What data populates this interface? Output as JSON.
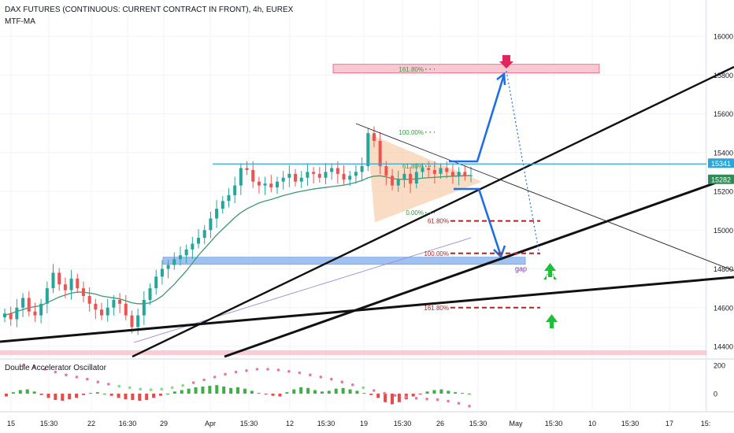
{
  "header": {
    "title": "DAX FUTURES (CONTINUOUS: CURRENT CONTRACT IN FRONT), 4h, EUREX",
    "indicator": "MTF-MA"
  },
  "oscillator": {
    "title": "Double Accelerator Oscillator",
    "ticks": [
      "200",
      "0"
    ]
  },
  "chart_data": {
    "type": "line",
    "ylim": [
      14340,
      16120
    ],
    "price_ticks": [
      16000,
      15800,
      15600,
      15400,
      15200,
      15000,
      14800,
      14600,
      14400
    ],
    "price_tags": [
      {
        "value": 15341,
        "label": "15341",
        "color": "#2ca6d8"
      },
      {
        "value": 15282,
        "label": "15282",
        "color": "#2e8b57"
      }
    ],
    "x_ticks": [
      "15",
      "15:30",
      "22",
      "16:30",
      "29",
      "Apr",
      "15:30",
      "12",
      "15:30",
      "19",
      "15:30",
      "26",
      "15:30",
      "May",
      "15:30",
      "10",
      "15:30",
      "17",
      "15:"
    ],
    "price_close": [
      14570,
      14540,
      14600,
      14650,
      14580,
      14560,
      14620,
      14700,
      14780,
      14720,
      14690,
      14750,
      14700,
      14660,
      14620,
      14590,
      14560,
      14600,
      14640,
      14620,
      14560,
      14500,
      14560,
      14640,
      14700,
      14760,
      14800,
      14820,
      14850,
      14870,
      14900,
      14930,
      14960,
      15000,
      15060,
      15110,
      15150,
      15180,
      15230,
      15320,
      15310,
      15250,
      15230,
      15240,
      15220,
      15250,
      15270,
      15290,
      15250,
      15270,
      15300,
      15290,
      15270,
      15300,
      15320,
      15290,
      15260,
      15280,
      15300,
      15330,
      15500,
      15460,
      15330,
      15280,
      15230,
      15260,
      15290,
      15240,
      15300,
      15320,
      15310,
      15290,
      15320,
      15300,
      15280,
      15300,
      15280,
      15282
    ],
    "ma_fast": [
      14560,
      14570,
      14580,
      14590,
      14600,
      14605,
      14610,
      14625,
      14640,
      14655,
      14665,
      14675,
      14680,
      14680,
      14675,
      14670,
      14660,
      14655,
      14650,
      14645,
      14635,
      14625,
      14620,
      14620,
      14625,
      14640,
      14660,
      14690,
      14720,
      14755,
      14790,
      14830,
      14870,
      14905,
      14940,
      14975,
      15005,
      15035,
      15065,
      15090,
      15110,
      15125,
      15140,
      15150,
      15158,
      15168,
      15178,
      15186,
      15194,
      15200,
      15206,
      15212,
      15216,
      15220,
      15224,
      15228,
      15232,
      15238,
      15246,
      15256,
      15270,
      15278,
      15280,
      15274,
      15266,
      15262,
      15262,
      15262,
      15264,
      15268,
      15270,
      15272,
      15274,
      15276,
      15278,
      15279,
      15280,
      15282
    ],
    "ma_slow": [
      14420,
      14440,
      14460,
      14480,
      14500,
      14520,
      14540,
      14560,
      14580,
      14600,
      14620,
      14640,
      14660,
      14680,
      14700,
      14720,
      14740,
      14760,
      14780,
      14800,
      14820,
      14840,
      14860,
      14880,
      14900,
      14920,
      14940,
      14960
    ],
    "fib_levels": [
      {
        "label": "161.80%",
        "value": 15830,
        "color": "#2e9e3f"
      },
      {
        "label": "100.00%",
        "value": 15505,
        "color": "#2e9e3f"
      },
      {
        "label": "61.80%",
        "value": 15330,
        "color": "#2e9e3f"
      },
      {
        "label": "0.00%",
        "value": 15090,
        "color": "#2e9e3f"
      },
      {
        "label": "61.80%",
        "value": 15047,
        "color": "#b22222"
      },
      {
        "label": "100.00%",
        "value": 14880,
        "color": "#b22222"
      },
      {
        "label": "161.80%",
        "value": 14600,
        "color": "#b22222"
      }
    ],
    "annotations": [
      {
        "text": "gap",
        "value": 14780,
        "color": "#7b2fb5"
      }
    ],
    "oscillator": {
      "ticks": [
        200,
        0
      ],
      "ylim": [
        -120,
        260
      ],
      "histogram": [
        -20,
        10,
        25,
        30,
        15,
        -10,
        -30,
        -45,
        -50,
        -40,
        -30,
        -10,
        5,
        10,
        0,
        -15,
        -30,
        -40,
        -45,
        -50,
        -45,
        -30,
        -15,
        0,
        15,
        25,
        35,
        45,
        50,
        55,
        60,
        50,
        40,
        45,
        35,
        20,
        5,
        -5,
        -15,
        -20,
        10,
        30,
        45,
        40,
        25,
        15,
        20,
        35,
        40,
        30,
        20,
        5,
        -10,
        -30,
        -60,
        -75,
        -60,
        -40,
        -20,
        -5,
        15,
        25,
        30,
        20,
        10,
        5,
        0
      ],
      "signal": [
        180,
        170,
        150,
        130,
        110,
        95,
        80,
        60,
        45,
        30,
        20,
        10,
        5,
        10,
        20,
        35,
        55,
        75,
        95,
        115,
        130,
        140,
        150,
        150,
        145,
        135,
        125,
        110,
        95,
        80,
        60,
        40,
        20,
        0,
        -20,
        -35,
        -45,
        -55,
        -60,
        -65,
        -75,
        -90,
        -110
      ]
    }
  }
}
